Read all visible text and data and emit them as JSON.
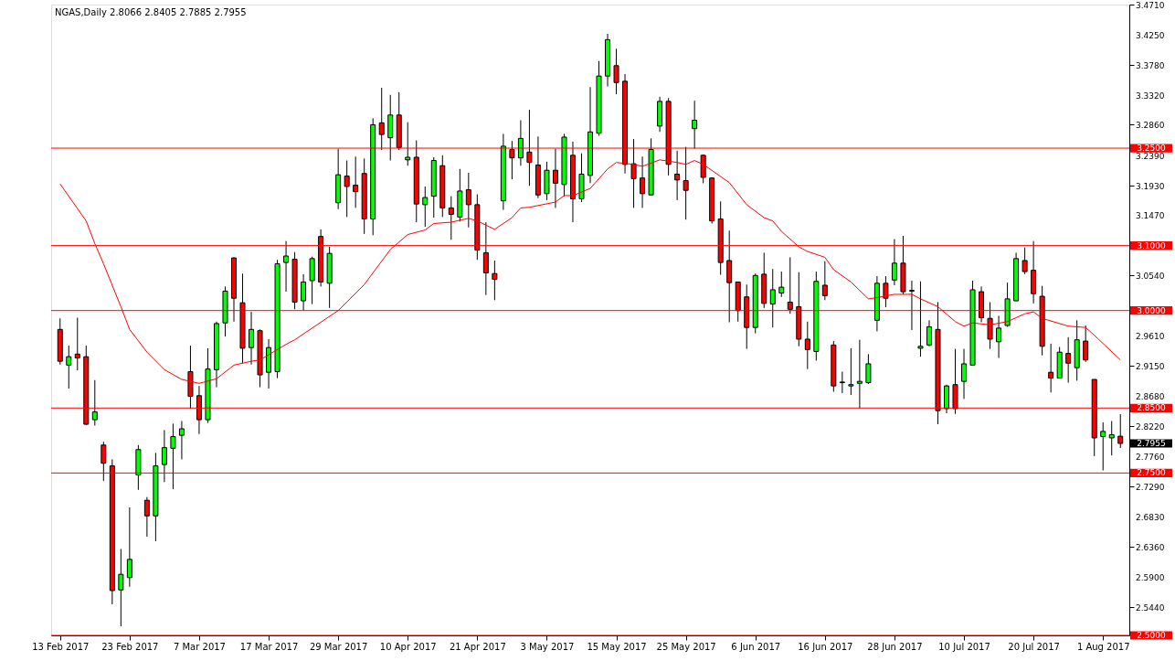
{
  "chart_data": {
    "type": "candlestick",
    "title": "NGAS,Daily  2.8066 2.8405 2.7885 2.7955",
    "categories": [
      "13 Feb 2017",
      null,
      null,
      null,
      null,
      null,
      null,
      null,
      "23 Feb 2017",
      null,
      null,
      null,
      null,
      null,
      null,
      null,
      "7 Mar 2017",
      null,
      null,
      null,
      null,
      null,
      null,
      null,
      "17 Mar 2017",
      null,
      null,
      null,
      null,
      null,
      null,
      null,
      "29 Mar 2017",
      null,
      null,
      null,
      null,
      null,
      null,
      null,
      "10 Apr 2017",
      null,
      null,
      null,
      null,
      null,
      null,
      null,
      "21 Apr 2017",
      null,
      null,
      null,
      null,
      null,
      null,
      null,
      "3 May 2017",
      null,
      null,
      null,
      null,
      null,
      null,
      null,
      "15 May 2017",
      null,
      null,
      null,
      null,
      null,
      null,
      null,
      "25 May 2017",
      null,
      null,
      null,
      null,
      null,
      null,
      null,
      "6 Jun 2017",
      null,
      null,
      null,
      null,
      null,
      null,
      null,
      "16 Jun 2017",
      null,
      null,
      null,
      null,
      null,
      null,
      null,
      "28 Jun 2017",
      null,
      null,
      null,
      null,
      null,
      null,
      null,
      "10 Jul 2017",
      null,
      null,
      null,
      null,
      null,
      null,
      null,
      "20 Jul 2017",
      null,
      null,
      null,
      null,
      null,
      null,
      null,
      "1 Aug 2017",
      null,
      null
    ],
    "ohlc": [
      [
        2.971,
        2.988,
        2.917,
        2.922
      ],
      [
        2.916,
        2.946,
        2.88,
        2.929
      ],
      [
        2.933,
        2.989,
        2.908,
        2.927
      ],
      [
        2.929,
        2.946,
        2.824,
        2.825
      ],
      [
        2.832,
        2.893,
        2.823,
        2.844
      ],
      [
        2.793,
        2.798,
        2.738,
        2.765
      ],
      [
        2.761,
        2.771,
        2.548,
        2.569
      ],
      [
        2.57,
        2.633,
        2.514,
        2.594
      ],
      [
        2.589,
        2.697,
        2.575,
        2.617
      ],
      [
        2.747,
        2.793,
        2.724,
        2.786
      ],
      [
        2.708,
        2.713,
        2.652,
        2.684
      ],
      [
        2.684,
        2.781,
        2.645,
        2.761
      ],
      [
        2.763,
        2.816,
        2.736,
        2.789
      ],
      [
        2.788,
        2.826,
        2.725,
        2.806
      ],
      [
        2.808,
        2.83,
        2.771,
        2.818
      ],
      [
        2.906,
        2.946,
        2.849,
        2.868
      ],
      [
        2.869,
        2.884,
        2.81,
        2.832
      ],
      [
        2.832,
        2.942,
        2.827,
        2.91
      ],
      [
        2.909,
        2.983,
        2.882,
        2.98
      ],
      [
        2.981,
        3.037,
        2.96,
        3.03
      ],
      [
        3.081,
        3.082,
        2.983,
        3.019
      ],
      [
        3.012,
        3.057,
        2.919,
        2.942
      ],
      [
        2.943,
        2.998,
        2.917,
        2.971
      ],
      [
        2.969,
        2.971,
        2.882,
        2.901
      ],
      [
        2.905,
        2.956,
        2.88,
        2.943
      ],
      [
        2.906,
        3.078,
        2.896,
        3.072
      ],
      [
        3.074,
        3.107,
        3.029,
        3.084
      ],
      [
        3.079,
        3.09,
        3.002,
        3.013
      ],
      [
        3.015,
        3.056,
        3.0,
        3.044
      ],
      [
        3.046,
        3.083,
        3.01,
        3.08
      ],
      [
        3.114,
        3.125,
        3.037,
        3.044
      ],
      [
        3.042,
        3.098,
        3.004,
        3.088
      ],
      [
        3.166,
        3.249,
        3.156,
        3.209
      ],
      [
        3.207,
        3.231,
        3.144,
        3.191
      ],
      [
        3.193,
        3.237,
        3.158,
        3.183
      ],
      [
        3.211,
        3.234,
        3.118,
        3.141
      ],
      [
        3.141,
        3.296,
        3.116,
        3.286
      ],
      [
        3.289,
        3.343,
        3.247,
        3.271
      ],
      [
        3.266,
        3.332,
        3.231,
        3.301
      ],
      [
        3.301,
        3.336,
        3.247,
        3.251
      ],
      [
        3.232,
        3.29,
        3.223,
        3.236
      ],
      [
        3.236,
        3.262,
        3.136,
        3.164
      ],
      [
        3.163,
        3.191,
        3.129,
        3.174
      ],
      [
        3.176,
        3.236,
        3.143,
        3.231
      ],
      [
        3.223,
        3.239,
        3.144,
        3.158
      ],
      [
        3.158,
        3.176,
        3.109,
        3.148
      ],
      [
        3.144,
        3.218,
        3.137,
        3.184
      ],
      [
        3.186,
        3.212,
        3.128,
        3.163
      ],
      [
        3.163,
        3.179,
        3.078,
        3.093
      ],
      [
        3.089,
        3.136,
        3.024,
        3.058
      ],
      [
        3.057,
        3.077,
        3.016,
        3.048
      ],
      [
        3.169,
        3.272,
        3.155,
        3.253
      ],
      [
        3.248,
        3.261,
        3.202,
        3.235
      ],
      [
        3.235,
        3.293,
        3.223,
        3.265
      ],
      [
        3.244,
        3.309,
        3.192,
        3.228
      ],
      [
        3.224,
        3.268,
        3.173,
        3.178
      ],
      [
        3.18,
        3.229,
        3.17,
        3.216
      ],
      [
        3.216,
        3.249,
        3.158,
        3.196
      ],
      [
        3.194,
        3.272,
        3.176,
        3.267
      ],
      [
        3.239,
        3.26,
        3.136,
        3.172
      ],
      [
        3.172,
        3.242,
        3.167,
        3.21
      ],
      [
        3.208,
        3.344,
        3.196,
        3.275
      ],
      [
        3.273,
        3.384,
        3.269,
        3.361
      ],
      [
        3.361,
        3.426,
        3.345,
        3.417
      ],
      [
        3.377,
        3.403,
        3.333,
        3.351
      ],
      [
        3.353,
        3.364,
        3.211,
        3.225
      ],
      [
        3.226,
        3.264,
        3.158,
        3.203
      ],
      [
        3.204,
        3.237,
        3.158,
        3.18
      ],
      [
        3.178,
        3.265,
        3.177,
        3.248
      ],
      [
        3.284,
        3.329,
        3.275,
        3.322
      ],
      [
        3.322,
        3.327,
        3.208,
        3.225
      ],
      [
        3.21,
        3.246,
        3.17,
        3.201
      ],
      [
        3.2,
        3.252,
        3.14,
        3.185
      ],
      [
        3.28,
        3.323,
        3.249,
        3.293
      ],
      [
        3.239,
        3.24,
        3.196,
        3.205
      ],
      [
        3.204,
        3.205,
        3.134,
        3.138
      ],
      [
        3.141,
        3.168,
        3.055,
        3.074
      ],
      [
        3.077,
        3.123,
        2.982,
        3.043
      ],
      [
        3.044,
        3.044,
        2.983,
        3.0
      ],
      [
        3.021,
        3.04,
        2.941,
        2.974
      ],
      [
        2.974,
        3.057,
        2.965,
        3.054
      ],
      [
        3.056,
        3.089,
        3.004,
        3.011
      ],
      [
        3.01,
        3.064,
        2.974,
        3.032
      ],
      [
        3.027,
        3.06,
        3.021,
        3.036
      ],
      [
        3.013,
        3.082,
        2.995,
        3.002
      ],
      [
        3.006,
        3.059,
        2.945,
        2.956
      ],
      [
        2.956,
        2.983,
        2.91,
        2.94
      ],
      [
        2.937,
        3.06,
        2.923,
        3.045
      ],
      [
        3.039,
        3.076,
        3.016,
        3.023
      ],
      [
        2.947,
        2.953,
        2.875,
        2.884
      ],
      [
        2.89,
        2.906,
        2.873,
        2.889
      ],
      [
        2.884,
        2.942,
        2.87,
        2.886
      ],
      [
        2.888,
        2.955,
        2.85,
        2.891
      ],
      [
        2.889,
        2.933,
        2.887,
        2.918
      ],
      [
        2.985,
        3.053,
        2.968,
        3.042
      ],
      [
        3.042,
        3.053,
        3.005,
        3.019
      ],
      [
        3.047,
        3.11,
        3.039,
        3.073
      ],
      [
        3.073,
        3.115,
        3.025,
        3.029
      ],
      [
        3.031,
        3.046,
        2.97,
        3.03
      ],
      [
        2.942,
        3.045,
        2.929,
        2.945
      ],
      [
        2.947,
        2.985,
        2.945,
        2.975
      ],
      [
        2.971,
        3.013,
        2.825,
        2.846
      ],
      [
        2.849,
        2.886,
        2.842,
        2.884
      ],
      [
        2.886,
        2.941,
        2.841,
        2.849
      ],
      [
        2.891,
        2.941,
        2.864,
        2.918
      ],
      [
        2.916,
        3.046,
        2.915,
        3.032
      ],
      [
        3.029,
        3.037,
        2.982,
        2.989
      ],
      [
        2.988,
        3.013,
        2.941,
        2.956
      ],
      [
        2.952,
        2.992,
        2.927,
        2.973
      ],
      [
        2.977,
        3.043,
        2.975,
        3.018
      ],
      [
        3.015,
        3.089,
        3.015,
        3.08
      ],
      [
        3.077,
        3.097,
        3.056,
        3.06
      ],
      [
        3.062,
        3.107,
        3.011,
        3.026
      ],
      [
        3.022,
        3.038,
        2.931,
        2.945
      ],
      [
        2.905,
        2.949,
        2.874,
        2.896
      ],
      [
        2.896,
        2.944,
        2.896,
        2.936
      ],
      [
        2.934,
        2.959,
        2.889,
        2.919
      ],
      [
        2.912,
        2.985,
        2.892,
        2.955
      ],
      [
        2.953,
        2.977,
        2.921,
        2.924
      ],
      [
        2.894,
        2.894,
        2.776,
        2.804
      ],
      [
        2.806,
        2.828,
        2.754,
        2.814
      ],
      [
        2.804,
        2.83,
        2.777,
        2.809
      ],
      [
        2.8066,
        2.8405,
        2.7885,
        2.7955
      ]
    ],
    "series": [
      {
        "type": "line",
        "color": "#ff0000",
        "values": [
          3.195,
          null,
          null,
          3.138,
          3.103,
          3.072,
          null,
          3.006,
          2.971,
          null,
          2.936,
          null,
          2.909,
          null,
          2.894,
          null,
          2.888,
          null,
          2.895,
          null,
          2.916,
          null,
          2.922,
          2.924,
          null,
          null,
          2.948,
          2.955,
          null,
          null,
          null,
          null,
          3.0,
          null,
          null,
          3.04,
          null,
          null,
          3.094,
          null,
          3.117,
          null,
          3.124,
          3.134,
          null,
          3.136,
          null,
          3.142,
          3.138,
          null,
          3.125,
          null,
          3.143,
          3.158,
          3.159,
          null,
          null,
          3.167,
          3.177,
          3.177,
          null,
          3.188,
          null,
          3.218,
          3.228,
          null,
          3.225,
          3.222,
          null,
          3.232,
          null,
          3.228,
          3.225,
          3.231,
          3.225,
          null,
          null,
          3.197,
          null,
          3.163,
          null,
          3.143,
          3.138,
          3.122,
          null,
          3.098,
          3.091,
          null,
          3.082,
          3.063,
          null,
          3.044,
          null,
          3.018,
          3.02,
          null,
          3.025,
          null,
          3.025,
          3.018,
          null,
          3.006,
          null,
          2.983,
          2.976,
          2.981,
          null,
          2.978,
          null,
          2.983,
          null,
          2.995,
          2.998,
          2.988,
          null,
          null,
          2.976,
          null,
          2.974,
          2.962,
          null,
          null,
          2.924
        ]
      }
    ],
    "ylim": [
      2.5,
      3.471
    ],
    "yticks": [
      {
        "value": 3.471,
        "label": "3.4710"
      },
      {
        "value": 3.425,
        "label": "3.4250"
      },
      {
        "value": 3.378,
        "label": "3.3780"
      },
      {
        "value": 3.332,
        "label": "3.3320"
      },
      {
        "value": 3.286,
        "label": "3.2860"
      },
      {
        "value": 3.239,
        "label": "3.2390"
      },
      {
        "value": 3.193,
        "label": "3.1930"
      },
      {
        "value": 3.147,
        "label": "3.1470"
      },
      {
        "value": 3.054,
        "label": "3.0540"
      },
      {
        "value": 2.961,
        "label": "2.9610"
      },
      {
        "value": 2.915,
        "label": "2.9150"
      },
      {
        "value": 2.868,
        "label": "2.8680"
      },
      {
        "value": 2.822,
        "label": "2.8220"
      },
      {
        "value": 2.776,
        "label": "2.7760"
      },
      {
        "value": 2.729,
        "label": "2.7290"
      },
      {
        "value": 2.683,
        "label": "2.6830"
      },
      {
        "value": 2.636,
        "label": "2.6360"
      },
      {
        "value": 2.59,
        "label": "2.5900"
      },
      {
        "value": 2.544,
        "label": "2.5440"
      }
    ],
    "ref_lines": [
      {
        "axis": "y",
        "value": 3.25,
        "label": "3.2500",
        "color": "#ff0000"
      },
      {
        "axis": "y",
        "value": 3.1,
        "label": "3.1000",
        "color": "#ff0000"
      },
      {
        "axis": "y",
        "value": 3.0,
        "label": "3.0000",
        "color": "#ff0000"
      },
      {
        "axis": "y",
        "value": 2.85,
        "label": "2.8500",
        "color": "#ff0000"
      },
      {
        "axis": "y",
        "value": 2.75,
        "label": "2.7500",
        "color": "#ff0000"
      },
      {
        "axis": "y",
        "value": 2.5,
        "label": "2.5000",
        "color": "#ff0000"
      }
    ],
    "annotations": [
      "2.7955"
    ],
    "grid": false
  }
}
